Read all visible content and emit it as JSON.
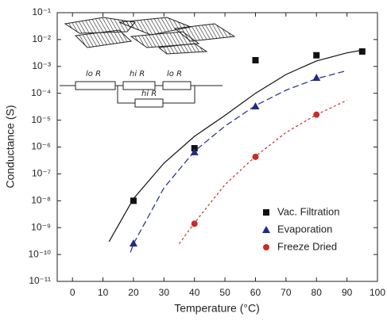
{
  "chart_data": {
    "type": "scatter",
    "xlabel": "Temperature (°C)",
    "ylabel": "Conductance (S)",
    "xlim": [
      -5,
      100
    ],
    "xticks": [
      0,
      10,
      20,
      30,
      40,
      50,
      60,
      70,
      80,
      90,
      100
    ],
    "ylim": [
      1e-11,
      0.1
    ],
    "yscale": "log",
    "yticks": [
      {
        "value": 1e-11,
        "label": "10⁻¹¹"
      },
      {
        "value": 1e-10,
        "label": "10⁻¹⁰"
      },
      {
        "value": 1e-09,
        "label": "10⁻⁹"
      },
      {
        "value": 1e-08,
        "label": "10⁻⁸"
      },
      {
        "value": 1e-07,
        "label": "10⁻⁷"
      },
      {
        "value": 1e-06,
        "label": "10⁻⁶"
      },
      {
        "value": 1e-05,
        "label": "10⁻⁵"
      },
      {
        "value": 0.0001,
        "label": "10⁻⁴"
      },
      {
        "value": 0.001,
        "label": "10⁻³"
      },
      {
        "value": 0.01,
        "label": "10⁻²"
      },
      {
        "value": 0.1,
        "label": "10⁻¹"
      }
    ],
    "legend": "lower right",
    "series": [
      {
        "name": "Vac. Filtration",
        "color": "#111111",
        "marker": "square",
        "x": [
          20,
          40,
          60,
          80,
          95
        ],
        "values": [
          1e-08,
          9e-07,
          0.0017,
          0.0026,
          0.0036
        ]
      },
      {
        "name": "Evaporation",
        "color": "#1f2a8a",
        "marker": "triangle",
        "x": [
          20,
          40,
          60,
          80
        ],
        "values": [
          2.6e-10,
          6.5e-07,
          3.3e-05,
          0.00038
        ]
      },
      {
        "name": "Freeze Dried",
        "color": "#cc2a2a",
        "marker": "circle",
        "x": [
          40,
          60,
          80
        ],
        "values": [
          1.4e-09,
          4.3e-07,
          1.6e-05
        ]
      }
    ],
    "fits": [
      {
        "color": "#111111",
        "dash": "solid",
        "x": [
          12,
          20,
          30,
          40,
          50,
          60,
          70,
          80,
          90,
          95
        ],
        "values": [
          3e-10,
          1.2e-08,
          2.5e-07,
          2.5e-06,
          1.5e-05,
          0.0001,
          0.0005,
          0.0016,
          0.0032,
          0.004
        ]
      },
      {
        "color": "#1f2a8a",
        "dash": "dashed",
        "x": [
          19,
          20,
          30,
          40,
          50,
          60,
          70,
          80,
          90
        ],
        "values": [
          1.2e-10,
          2.5e-10,
          3e-08,
          7e-07,
          6e-06,
          3.5e-05,
          0.00013,
          0.00035,
          0.0007
        ]
      },
      {
        "color": "#cc2a2a",
        "dash": "dotted",
        "x": [
          35,
          40,
          50,
          60,
          70,
          80,
          90
        ],
        "values": [
          2.5e-10,
          1.5e-09,
          4e-08,
          4.5e-07,
          3.5e-06,
          1.6e-05,
          5.5e-05
        ]
      }
    ]
  },
  "inset": {
    "labels": [
      "lo R",
      "hi R",
      "lo R",
      "hi R"
    ]
  }
}
